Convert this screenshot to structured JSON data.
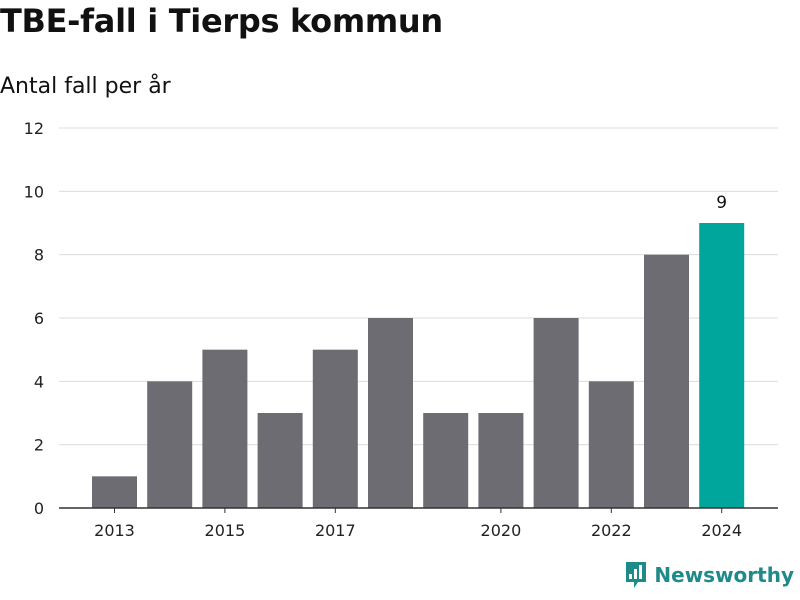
{
  "title": "TBE-fall i Tierps kommun",
  "brand": {
    "name": "Newsworthy",
    "color": "#1f8a8a",
    "icon": "bar-chart-speech-icon"
  },
  "chart_data": {
    "type": "bar",
    "title": "TBE-fall i Tierps kommun",
    "ylabel": "Antal fall per år",
    "xlabel": "",
    "categories": [
      "2013",
      "2014",
      "2015",
      "2016",
      "2017",
      "2018",
      "2019",
      "2020",
      "2021",
      "2022",
      "2023",
      "2024"
    ],
    "values": [
      1,
      4,
      5,
      3,
      5,
      6,
      3,
      3,
      6,
      4,
      8,
      9
    ],
    "x_tick_labels": [
      "2013",
      "2015",
      "2017",
      "2020",
      "2022",
      "2024"
    ],
    "y_ticks": [
      "0",
      "2",
      "4",
      "6",
      "8",
      "10",
      "12"
    ],
    "ylim": [
      0,
      12
    ],
    "grid": true,
    "colors": {
      "default": "#6d6c72",
      "highlight": "#00a69c"
    },
    "highlight": "2024",
    "data_labels": [
      {
        "category": "2024",
        "text": "9"
      }
    ]
  }
}
